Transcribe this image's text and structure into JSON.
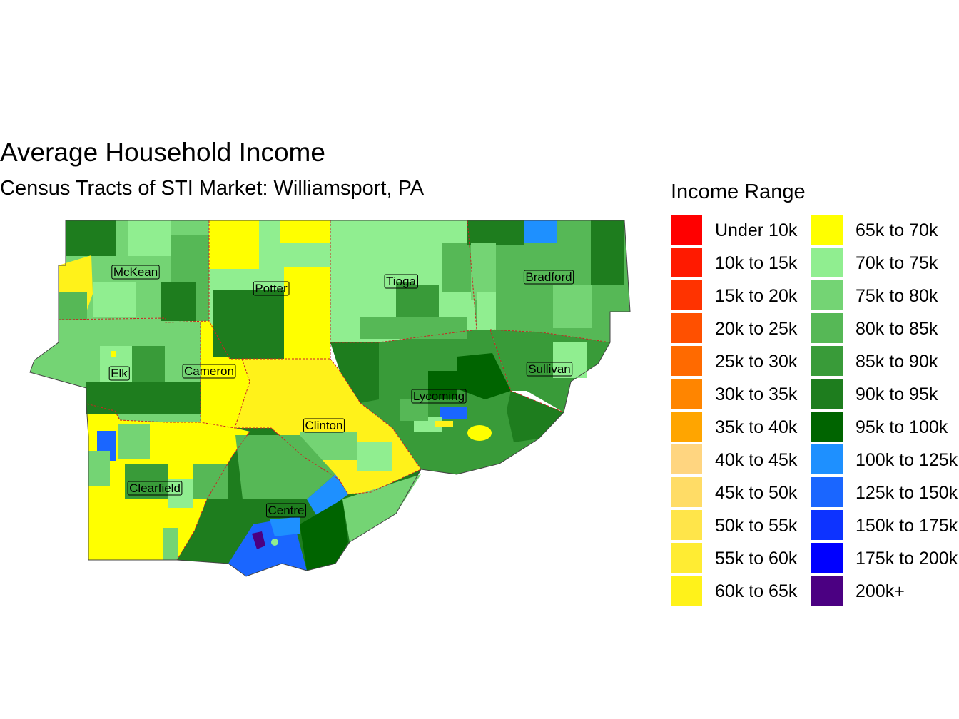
{
  "title": "Average Household Income",
  "subtitle": "Census Tracts of STI Market: Williamsport, PA",
  "legend": {
    "title": "Income Range",
    "items": [
      {
        "label": "Under 10k",
        "color": "#ff0000"
      },
      {
        "label": "10k to 15k",
        "color": "#ff1a00"
      },
      {
        "label": "15k to 20k",
        "color": "#ff3300"
      },
      {
        "label": "20k to 25k",
        "color": "#ff5000"
      },
      {
        "label": "25k to 30k",
        "color": "#ff6a00"
      },
      {
        "label": "30k to 35k",
        "color": "#ff8500"
      },
      {
        "label": "35k to 40k",
        "color": "#ffa500"
      },
      {
        "label": "40k to 45k",
        "color": "#ffd580"
      },
      {
        "label": "45k to 50k",
        "color": "#ffdc66"
      },
      {
        "label": "50k to 55k",
        "color": "#ffe54a"
      },
      {
        "label": "55k to 60k",
        "color": "#ffec33"
      },
      {
        "label": "60k to 65k",
        "color": "#fff21a"
      },
      {
        "label": "65k to 70k",
        "color": "#ffff00"
      },
      {
        "label": "70k to 75k",
        "color": "#90ee90"
      },
      {
        "label": "75k to 80k",
        "color": "#74d474"
      },
      {
        "label": "80k to 85k",
        "color": "#56b856"
      },
      {
        "label": "85k to 90k",
        "color": "#399b39"
      },
      {
        "label": "90k to 95k",
        "color": "#1e7d1e"
      },
      {
        "label": "95k to 100k",
        "color": "#006400"
      },
      {
        "label": "100k to 125k",
        "color": "#1e90ff"
      },
      {
        "label": "125k to 150k",
        "color": "#1a66ff"
      },
      {
        "label": "150k to 175k",
        "color": "#0d33ff"
      },
      {
        "label": "175k to 200k",
        "color": "#0000ff"
      },
      {
        "label": "200k+",
        "color": "#4b0082"
      }
    ]
  },
  "counties": [
    {
      "name": "McKean",
      "fill": "#74d474"
    },
    {
      "name": "Potter",
      "fill": "#90ee90"
    },
    {
      "name": "Tioga",
      "fill": "#90ee90"
    },
    {
      "name": "Bradford",
      "fill": "#56b856"
    },
    {
      "name": "Elk",
      "fill": "#74d474"
    },
    {
      "name": "Cameron",
      "fill": "#ffff00"
    },
    {
      "name": "Sullivan",
      "fill": "#399b39"
    },
    {
      "name": "Lycoming",
      "fill": "#399b39"
    },
    {
      "name": "Clinton",
      "fill": "#fff21a"
    },
    {
      "name": "Clearfield",
      "fill": "#ffff00"
    },
    {
      "name": "Centre",
      "fill": "#1e7d1e"
    }
  ]
}
